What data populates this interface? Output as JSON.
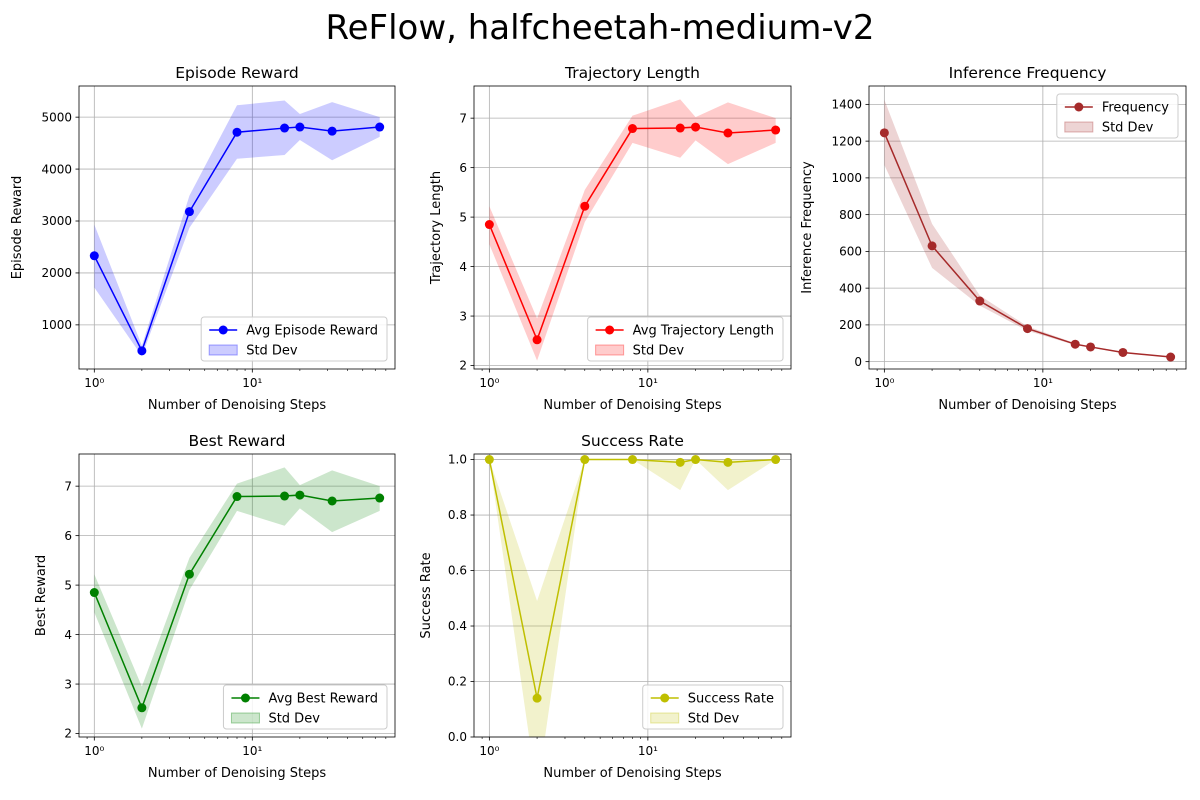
{
  "figure": {
    "suptitle": "ReFlow, halfcheetah-medium-v2"
  },
  "chart_data": [
    {
      "type": "line",
      "title": "Episode Reward",
      "xlabel": "Number of Denoising Steps",
      "ylabel": "Episode Reward",
      "xscale": "log",
      "xlim": [
        0.8,
        80
      ],
      "ylim": [
        150,
        5600
      ],
      "xticks": [
        1,
        10
      ],
      "xtick_labels": [
        "10⁰",
        "10¹"
      ],
      "yticks": [
        1000,
        2000,
        3000,
        4000,
        5000
      ],
      "grid": true,
      "legend": "lower-right",
      "color": "#0000ff",
      "series": [
        {
          "name": "Avg Episode Reward",
          "x": [
            1,
            2,
            4,
            8,
            16,
            20,
            32,
            64
          ],
          "y": [
            2330,
            500,
            3180,
            4710,
            4790,
            4810,
            4730,
            4810
          ],
          "lower": [
            1720,
            400,
            2870,
            4200,
            4270,
            4560,
            4170,
            4620
          ],
          "upper": [
            2930,
            600,
            3490,
            5230,
            5320,
            5060,
            5290,
            5000
          ]
        }
      ],
      "band_name": "Std Dev"
    },
    {
      "type": "line",
      "title": "Trajectory Length",
      "xlabel": "Number of Denoising Steps",
      "ylabel": "Trajectory Length",
      "xscale": "log",
      "xlim": [
        0.8,
        80
      ],
      "ylim": [
        1.93,
        7.65
      ],
      "xticks": [
        1,
        10
      ],
      "xtick_labels": [
        "10⁰",
        "10¹"
      ],
      "yticks": [
        2,
        3,
        4,
        5,
        6,
        7
      ],
      "grid": true,
      "legend": "lower-right",
      "color": "#ff0000",
      "series": [
        {
          "name": "Avg Trajectory Length",
          "x": [
            1,
            2,
            4,
            8,
            16,
            20,
            32,
            64
          ],
          "y": [
            4.85,
            2.52,
            5.22,
            6.79,
            6.8,
            6.82,
            6.7,
            6.76
          ],
          "lower": [
            4.45,
            2.1,
            4.9,
            6.5,
            6.2,
            6.55,
            6.07,
            6.5
          ],
          "upper": [
            5.22,
            2.95,
            5.55,
            7.05,
            7.38,
            7.02,
            7.32,
            7.0
          ]
        }
      ],
      "band_name": "Std Dev"
    },
    {
      "type": "line",
      "title": "Inference Frequency",
      "xlabel": "Number of Denoising Steps",
      "ylabel": "Inference Frequency",
      "xscale": "log",
      "xlim": [
        0.8,
        80
      ],
      "ylim": [
        -40,
        1500
      ],
      "xticks": [
        1,
        10
      ],
      "xtick_labels": [
        "10⁰",
        "10¹"
      ],
      "yticks": [
        0,
        200,
        400,
        600,
        800,
        1000,
        1200,
        1400
      ],
      "grid": true,
      "legend": "upper-right",
      "color": "#a52a2a",
      "series": [
        {
          "name": "Frequency",
          "x": [
            1,
            2,
            4,
            8,
            16,
            20,
            32,
            64
          ],
          "y": [
            1245,
            630,
            330,
            180,
            95,
            80,
            50,
            25
          ],
          "lower": [
            1070,
            510,
            305,
            168,
            90,
            76,
            47,
            23
          ],
          "upper": [
            1425,
            750,
            360,
            192,
            100,
            84,
            53,
            27
          ]
        }
      ],
      "band_name": "Std Dev"
    },
    {
      "type": "line",
      "title": "Best Reward",
      "xlabel": "Number of Denoising Steps",
      "ylabel": "Best Reward",
      "xscale": "log",
      "xlim": [
        0.8,
        80
      ],
      "ylim": [
        1.93,
        7.65
      ],
      "xticks": [
        1,
        10
      ],
      "xtick_labels": [
        "10⁰",
        "10¹"
      ],
      "yticks": [
        2,
        3,
        4,
        5,
        6,
        7
      ],
      "grid": true,
      "legend": "lower-right",
      "color": "#008000",
      "series": [
        {
          "name": "Avg Best Reward",
          "x": [
            1,
            2,
            4,
            8,
            16,
            20,
            32,
            64
          ],
          "y": [
            4.85,
            2.52,
            5.22,
            6.79,
            6.8,
            6.82,
            6.7,
            6.76
          ],
          "lower": [
            4.45,
            2.1,
            4.9,
            6.5,
            6.2,
            6.55,
            6.07,
            6.5
          ],
          "upper": [
            5.22,
            2.95,
            5.55,
            7.05,
            7.38,
            7.02,
            7.32,
            7.0
          ]
        }
      ],
      "band_name": "Std Dev"
    },
    {
      "type": "line",
      "title": "Success Rate",
      "xlabel": "Number of Denoising Steps",
      "ylabel": "Success Rate",
      "xscale": "log",
      "xlim": [
        0.8,
        80
      ],
      "ylim": [
        0.0,
        1.02
      ],
      "xticks": [
        1,
        10
      ],
      "xtick_labels": [
        "10⁰",
        "10¹"
      ],
      "yticks": [
        0.0,
        0.2,
        0.4,
        0.6,
        0.8,
        1.0
      ],
      "ytick_labels": [
        "0.0",
        "0.2",
        "0.4",
        "0.6",
        "0.8",
        "1.0"
      ],
      "grid": true,
      "legend": "lower-right",
      "color": "#bfbf00",
      "series": [
        {
          "name": "Success Rate",
          "x": [
            1,
            2,
            4,
            8,
            16,
            20,
            32,
            64
          ],
          "y": [
            1.0,
            0.14,
            1.0,
            1.0,
            0.99,
            1.0,
            0.99,
            1.0
          ],
          "lower": [
            1.0,
            -0.2,
            1.0,
            1.0,
            0.89,
            1.0,
            0.89,
            1.0
          ],
          "upper": [
            1.0,
            0.49,
            1.0,
            1.0,
            1.0,
            1.0,
            1.0,
            1.0
          ]
        }
      ],
      "band_name": "Std Dev"
    }
  ]
}
